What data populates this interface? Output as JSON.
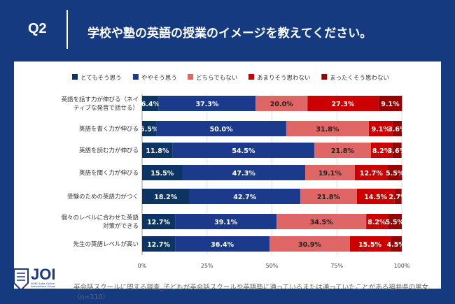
{
  "header": {
    "question": "Q2",
    "title": "学校や塾の英語の授業のイメージを教えてください。"
  },
  "source": "英会話スクールに関する調査_子どもが英会話スクールや英語塾に通っているまたは通っていたことがある福井県の男女（n=110）",
  "logo": {
    "text": "JOI",
    "sub": "JYUKO Labo. Online International School"
  },
  "chart_data": {
    "type": "bar",
    "orientation": "horizontal",
    "stacked": true,
    "xlim": [
      0,
      100
    ],
    "xticks": [
      "0%",
      "25%",
      "50%",
      "75%",
      "100%"
    ],
    "grid": true,
    "legend": "top",
    "categories": [
      [
        "英語を話す力が伸びる（ネイ",
        "ティブな発音で話せる）"
      ],
      [
        "英語を書く力が伸びる"
      ],
      [
        "英語を読む力が伸びる"
      ],
      [
        "英語を聞く力が伸びる"
      ],
      [
        "受験のための英語力がつく"
      ],
      [
        "個々のレベルに合わせた英語",
        "対策ができる"
      ],
      [
        "先生の英語レベルが高い"
      ]
    ],
    "series": [
      {
        "name": "とてもそう思う",
        "color": "#0d3563",
        "label_color": "#ffffff",
        "values": [
          6.4,
          5.5,
          11.8,
          15.5,
          18.2,
          12.7,
          12.7
        ]
      },
      {
        "name": "ややそう思う",
        "color": "#1b3a8c",
        "label_color": "#ffffff",
        "values": [
          37.3,
          50.0,
          54.5,
          47.3,
          42.7,
          39.1,
          36.4
        ]
      },
      {
        "name": "どちらでもない",
        "color": "#e06666",
        "label_color": "#222222",
        "values": [
          20.0,
          31.8,
          21.8,
          19.1,
          21.8,
          34.5,
          30.9
        ]
      },
      {
        "name": "あまりそう思わない",
        "color": "#cc0000",
        "label_color": "#ffffff",
        "values": [
          27.3,
          9.1,
          8.2,
          12.7,
          14.5,
          8.2,
          15.5
        ]
      },
      {
        "name": "まったくそう思わない",
        "color": "#990000",
        "label_color": "#ffffff",
        "values": [
          9.1,
          3.6,
          3.6,
          5.5,
          2.7,
          5.5,
          4.5
        ]
      }
    ]
  }
}
